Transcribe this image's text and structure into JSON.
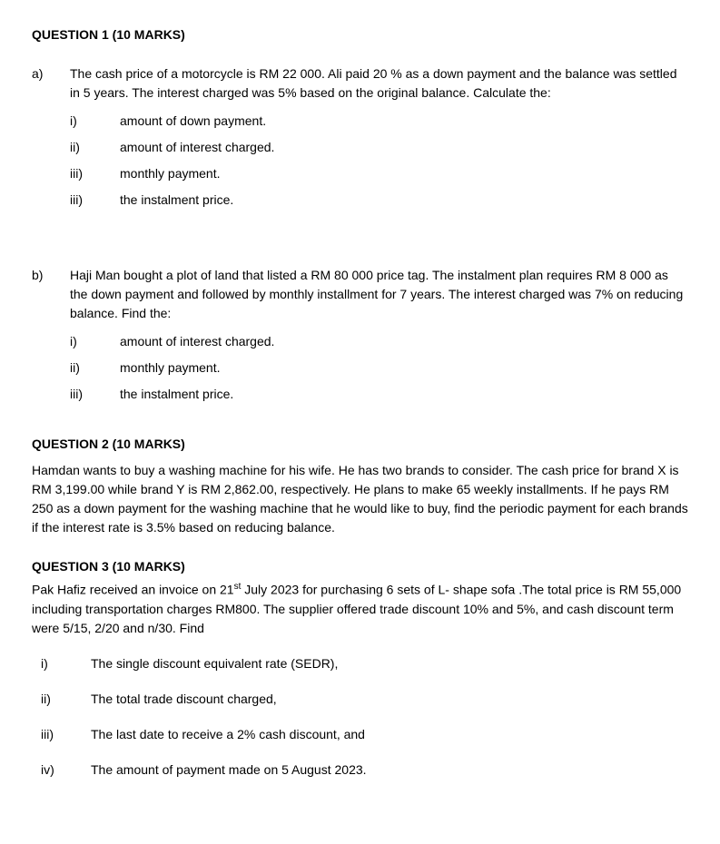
{
  "q1": {
    "heading": "QUESTION 1 (10 MARKS)",
    "a": {
      "label": "a)",
      "intro": "The cash price of a motorcycle is RM 22 000. Ali paid 20 % as a down payment and the balance was settled in 5 years. The interest charged was 5% based on the original balance. Calculate the:",
      "items": [
        {
          "label": "i)",
          "text": "amount of down payment."
        },
        {
          "label": "ii)",
          "text": "amount of interest charged."
        },
        {
          "label": "iii)",
          "text": "monthly payment."
        },
        {
          "label": "iii)",
          "text": "the instalment price."
        }
      ]
    },
    "b": {
      "label": "b)",
      "intro": "Haji Man bought a plot of land that listed a RM 80 000 price tag. The instalment plan requires RM 8 000 as the down payment  and followed by monthly installment for 7 years. The interest charged was 7% on reducing balance. Find the:",
      "items": [
        {
          "label": "i)",
          "text": "amount of interest charged."
        },
        {
          "label": "ii)",
          "text": "monthly payment."
        },
        {
          "label": "iii)",
          "text": "the instalment price."
        }
      ]
    }
  },
  "q2": {
    "heading": "QUESTION 2 (10 MARKS)",
    "body": "Hamdan wants to buy a washing machine for his wife. He has two brands to consider. The cash price for brand X is RM 3,199.00 while brand Y is RM 2,862.00, respectively. He plans to make 65 weekly installments. If he pays RM 250 as a down payment for the washing machine that he would like to buy, find the periodic payment for each brands if the interest rate is 3.5% based on reducing balance."
  },
  "q3": {
    "heading": "QUESTION 3 (10 MARKS)",
    "body_pre": "Pak Hafiz received an invoice on 21",
    "body_sup": "st",
    "body_post": " July 2023 for purchasing 6 sets of L- shape sofa .The total price is RM 55,000 including transportation charges RM800. The supplier offered trade discount 10% and 5%, and cash discount term were 5/15, 2/20 and n/30. Find",
    "items": [
      {
        "label": "i)",
        "text": "The single discount equivalent rate (SEDR),"
      },
      {
        "label": "ii)",
        "text": "The total trade discount charged,"
      },
      {
        "label": "iii)",
        "text": "The last date to receive a 2% cash discount, and"
      },
      {
        "label": "iv)",
        "text": "The amount of payment made on 5 August 2023."
      }
    ]
  }
}
